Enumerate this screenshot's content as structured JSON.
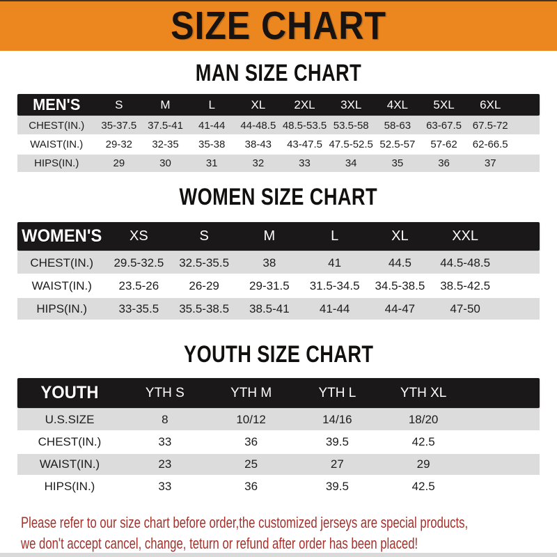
{
  "banner": {
    "title": "SIZE CHART"
  },
  "colors": {
    "banner_orange": "#EC861F",
    "bar_black": "#1B181A",
    "stripe_gray": "#DCDCDC",
    "note_red": "#A5312B"
  },
  "sections": [
    {
      "id": "men",
      "heading": "MAN SIZE CHART",
      "header_label": "MEN'S",
      "columns": [
        "S",
        "M",
        "L",
        "XL",
        "2XL",
        "3XL",
        "4XL",
        "5XL",
        "6XL"
      ],
      "rows": [
        {
          "label": "CHEST(IN.)",
          "values": [
            "35-37.5",
            "37.5-41",
            "41-44",
            "44-48.5",
            "48.5-53.5",
            "53.5-58",
            "58-63",
            "63-67.5",
            "67.5-72"
          ]
        },
        {
          "label": "WAIST(IN.)",
          "values": [
            "29-32",
            "32-35",
            "35-38",
            "38-43",
            "43-47.5",
            "47.5-52.5",
            "52.5-57",
            "57-62",
            "62-66.5"
          ]
        },
        {
          "label": "HIPS(IN.)",
          "values": [
            "29",
            "30",
            "31",
            "32",
            "33",
            "34",
            "35",
            "36",
            "37"
          ]
        }
      ]
    },
    {
      "id": "women",
      "heading": "WOMEN SIZE CHART",
      "header_label": "WOMEN'S",
      "columns": [
        "XS",
        "S",
        "M",
        "L",
        "XL",
        "XXL"
      ],
      "rows": [
        {
          "label": "CHEST(IN.)",
          "values": [
            "29.5-32.5",
            "32.5-35.5",
            "38",
            "41",
            "44.5",
            "44.5-48.5"
          ]
        },
        {
          "label": "WAIST(IN.)",
          "values": [
            "23.5-26",
            "26-29",
            "29-31.5",
            "31.5-34.5",
            "34.5-38.5",
            "38.5-42.5"
          ]
        },
        {
          "label": "HIPS(IN.)",
          "values": [
            "33-35.5",
            "35.5-38.5",
            "38.5-41",
            "41-44",
            "44-47",
            "47-50"
          ]
        }
      ]
    },
    {
      "id": "youth",
      "heading": "YOUTH SIZE CHART",
      "header_label": "YOUTH",
      "columns": [
        "YTH S",
        "YTH M",
        "YTH L",
        "YTH XL"
      ],
      "rows": [
        {
          "label": "U.S.SIZE",
          "values": [
            "8",
            "10/12",
            "14/16",
            "18/20"
          ]
        },
        {
          "label": "CHEST(IN.)",
          "values": [
            "33",
            "36",
            "39.5",
            "42.5"
          ]
        },
        {
          "label": "WAIST(IN.)",
          "values": [
            "23",
            "25",
            "27",
            "29"
          ]
        },
        {
          "label": "HIPS(IN.)",
          "values": [
            "33",
            "36",
            "39.5",
            "42.5"
          ]
        }
      ]
    }
  ],
  "note": {
    "line1": "Please refer to our size chart before order,the customized jerseys are special products,",
    "line2": "we don't accept cancel, change, teturn or refund after order has been placed!"
  }
}
